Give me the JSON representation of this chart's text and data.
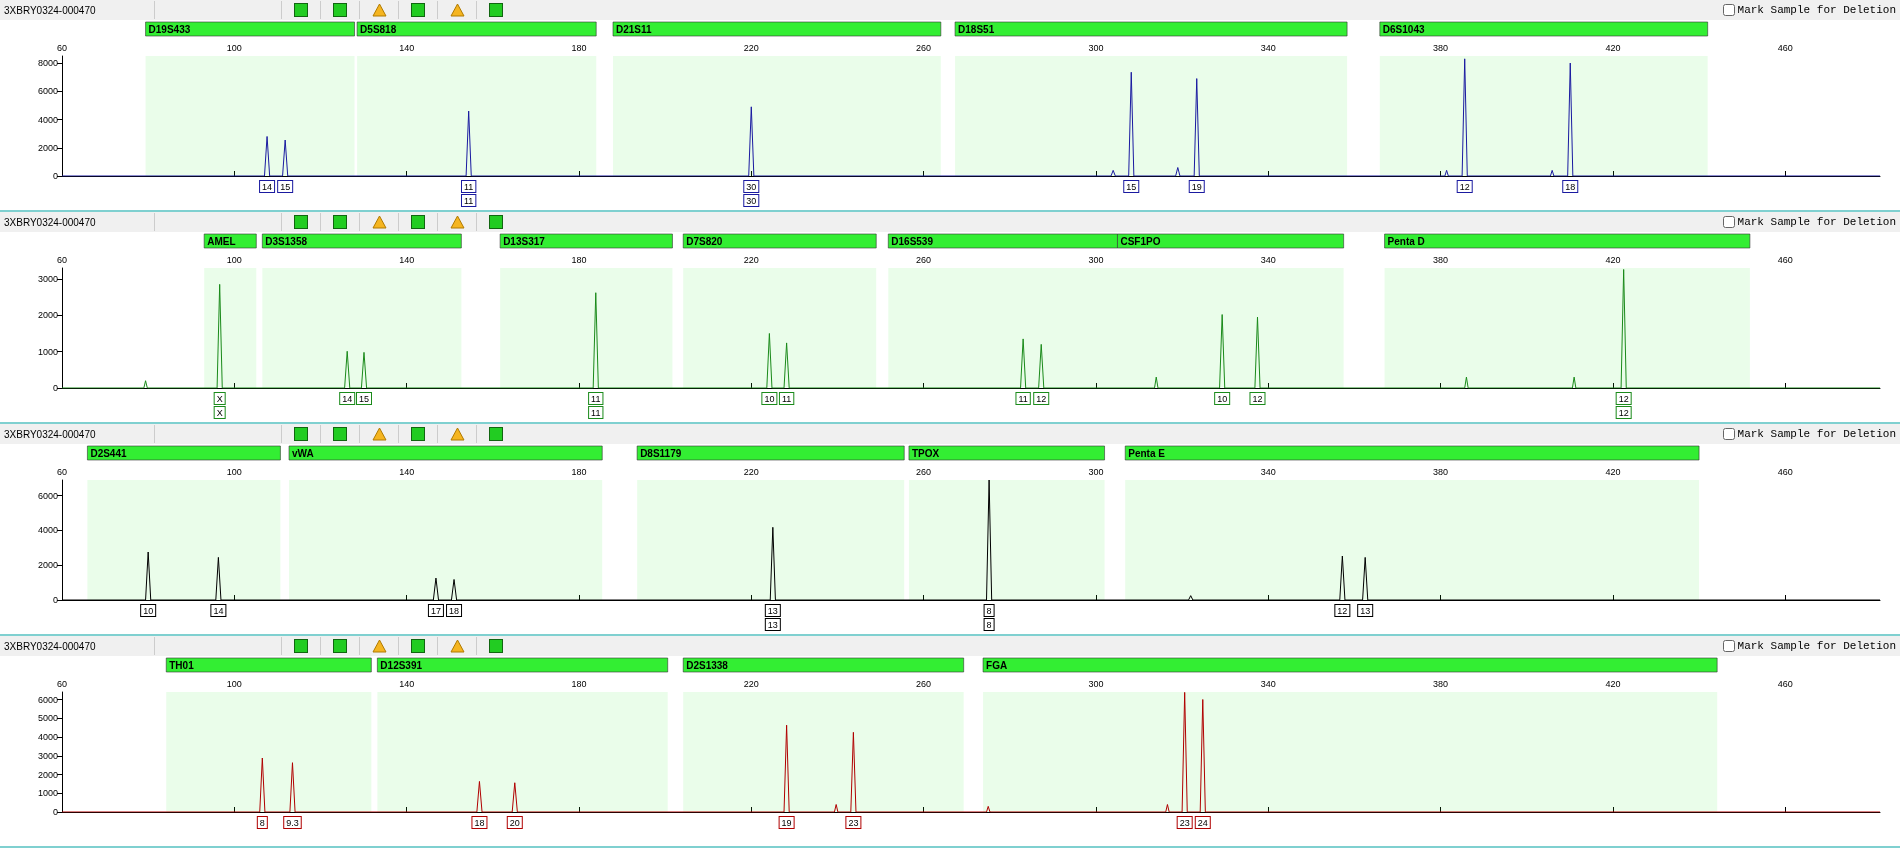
{
  "chart_data": [
    {
      "type": "line",
      "title": "3XBRY0324-000470",
      "marker": "none",
      "line_style": "solid",
      "xlim": [
        60,
        482
      ],
      "xticks": [
        60,
        100,
        140,
        180,
        220,
        260,
        300,
        340,
        380,
        420,
        460
      ],
      "ylim": [
        0,
        8500
      ],
      "yticks": [
        0,
        2000,
        4000,
        6000,
        8000
      ],
      "series": [
        {
          "color": "#1a1aa0",
          "x": [
            60,
            107,
            107.6,
            108.2,
            111.2,
            111.8,
            112.4,
            153.8,
            154.4,
            155,
            219.4,
            220,
            220.6,
            303.5,
            304,
            304.5,
            307.6,
            308.2,
            308.8,
            318.5,
            319,
            319.5,
            322.8,
            323.4,
            324,
            381,
            381.4,
            381.8,
            385,
            385.6,
            386.2,
            405.5,
            405.9,
            406.3,
            409.5,
            410.1,
            410.7,
            482
          ],
          "values": [
            0,
            0,
            2800,
            0,
            0,
            2550,
            0,
            0,
            4600,
            0,
            0,
            4900,
            0,
            0,
            400,
            0,
            0,
            7350,
            0,
            0,
            600,
            0,
            0,
            6900,
            0,
            0,
            400,
            0,
            0,
            8300,
            0,
            0,
            400,
            0,
            0,
            8000,
            0,
            0
          ]
        }
      ],
      "bands": [
        {
          "axis": "x",
          "from": 79.4,
          "to": 127.9,
          "label": "D19S433",
          "color": "#33ee33"
        },
        {
          "axis": "x",
          "from": 128.5,
          "to": 184,
          "label": "D5S818",
          "color": "#33ee33"
        },
        {
          "axis": "x",
          "from": 187.9,
          "to": 264,
          "label": "D21S11",
          "color": "#33ee33"
        },
        {
          "axis": "x",
          "from": 267.3,
          "to": 358.3,
          "label": "D18S51",
          "color": "#33ee33"
        },
        {
          "axis": "x",
          "from": 365.9,
          "to": 442,
          "label": "D6S1043",
          "color": "#33ee33"
        }
      ],
      "annotations": [
        "Mark Sample for Deletion",
        {
          "text": "14",
          "x": 107.6,
          "y": 0
        },
        {
          "text": "15",
          "x": 111.8,
          "y": 0
        },
        {
          "text": "11",
          "x": 154.4,
          "y": 0
        },
        {
          "text": "11",
          "x": 154.4,
          "y": 0
        },
        {
          "text": "30",
          "x": 220,
          "y": 0
        },
        {
          "text": "30",
          "x": 220,
          "y": 0
        },
        {
          "text": "15",
          "x": 308.2,
          "y": 0
        },
        {
          "text": "19",
          "x": 323.4,
          "y": 0
        },
        {
          "text": "12",
          "x": 385.6,
          "y": 0
        },
        {
          "text": "18",
          "x": 410.1,
          "y": 0
        }
      ]
    },
    {
      "type": "line",
      "title": "3XBRY0324-000470",
      "marker": "none",
      "line_style": "solid",
      "xlim": [
        60,
        482
      ],
      "xticks": [
        60,
        100,
        140,
        180,
        220,
        260,
        300,
        340,
        380,
        420,
        460
      ],
      "ylim": [
        0,
        3300
      ],
      "yticks": [
        0,
        1000,
        2000,
        3000
      ],
      "series": [
        {
          "color": "#1a8a1a",
          "x": [
            60,
            79,
            79.4,
            79.8,
            96,
            96.6,
            97.2,
            125.6,
            126.2,
            126.8,
            129.5,
            130.1,
            130.7,
            183.3,
            183.9,
            184.5,
            223.6,
            224.2,
            224.8,
            227.6,
            228.2,
            228.8,
            282.5,
            283.1,
            283.7,
            286.7,
            287.3,
            287.9,
            313.6,
            314,
            314.4,
            328.7,
            329.3,
            329.9,
            336.9,
            337.5,
            338.1,
            385.6,
            386,
            386.4,
            410.6,
            411,
            411.4,
            421.9,
            422.5,
            423.1,
            482
          ],
          "values": [
            0,
            0,
            200,
            0,
            0,
            2850,
            0,
            0,
            1010,
            0,
            0,
            980,
            0,
            0,
            2620,
            0,
            0,
            1500,
            0,
            0,
            1240,
            0,
            0,
            1350,
            0,
            0,
            1200,
            0,
            0,
            300,
            0,
            0,
            2020,
            0,
            0,
            1950,
            0,
            0,
            300,
            0,
            0,
            300,
            0,
            0,
            3260,
            0,
            0
          ]
        }
      ],
      "bands": [
        {
          "axis": "x",
          "from": 93,
          "to": 105.1,
          "label": "AMEL",
          "color": "#33ee33"
        },
        {
          "axis": "x",
          "from": 106.5,
          "to": 152.7,
          "label": "D3S1358",
          "color": "#33ee33"
        },
        {
          "axis": "x",
          "from": 161.7,
          "to": 201.7,
          "label": "D13S317",
          "color": "#33ee33"
        },
        {
          "axis": "x",
          "from": 204.2,
          "to": 249,
          "label": "D7S820",
          "color": "#33ee33"
        },
        {
          "axis": "x",
          "from": 251.8,
          "to": 305,
          "label": "D16S539",
          "color": "#33ee33"
        },
        {
          "axis": "x",
          "from": 305,
          "to": 357.5,
          "label": "CSF1PO",
          "color": "#33ee33"
        },
        {
          "axis": "x",
          "from": 367,
          "to": 451.8,
          "label": "Penta D",
          "color": "#33ee33"
        }
      ],
      "annotations": [
        "Mark Sample for Deletion",
        {
          "text": "X",
          "x": 96.6,
          "y": 0
        },
        {
          "text": "X",
          "x": 96.6,
          "y": 0
        },
        {
          "text": "14",
          "x": 126.2,
          "y": 0
        },
        {
          "text": "15",
          "x": 130.1,
          "y": 0
        },
        {
          "text": "11",
          "x": 183.9,
          "y": 0
        },
        {
          "text": "11",
          "x": 183.9,
          "y": 0
        },
        {
          "text": "10",
          "x": 224.2,
          "y": 0
        },
        {
          "text": "11",
          "x": 228.2,
          "y": 0
        },
        {
          "text": "11",
          "x": 283.1,
          "y": 0
        },
        {
          "text": "12",
          "x": 287.3,
          "y": 0
        },
        {
          "text": "10",
          "x": 329.3,
          "y": 0
        },
        {
          "text": "12",
          "x": 337.5,
          "y": 0
        },
        {
          "text": "12",
          "x": 422.5,
          "y": 0
        },
        {
          "text": "12",
          "x": 422.5,
          "y": 0
        }
      ]
    },
    {
      "type": "line",
      "title": "3XBRY0324-000470",
      "marker": "none",
      "line_style": "solid",
      "xlim": [
        60,
        482
      ],
      "xticks": [
        60,
        100,
        140,
        180,
        220,
        260,
        300,
        340,
        380,
        420,
        460
      ],
      "ylim": [
        0,
        6900
      ],
      "yticks": [
        0,
        2000,
        4000,
        6000
      ],
      "series": [
        {
          "color": "#000000",
          "x": [
            60,
            79.4,
            80,
            80.6,
            95.7,
            96.3,
            96.9,
            146.2,
            146.8,
            147.4,
            150.4,
            151,
            151.6,
            224.4,
            225,
            225.6,
            274.6,
            275.2,
            275.8,
            321.5,
            322,
            322.5,
            356.6,
            357.2,
            357.8,
            361.9,
            362.5,
            363.1,
            482
          ],
          "values": [
            0,
            0,
            2760,
            0,
            0,
            2450,
            0,
            0,
            1260,
            0,
            0,
            1180,
            0,
            0,
            4180,
            0,
            0,
            6900,
            0,
            0,
            250,
            0,
            0,
            2530,
            0,
            0,
            2450,
            0,
            0
          ]
        }
      ],
      "bands": [
        {
          "axis": "x",
          "from": 65.9,
          "to": 110.7,
          "label": "D2S441",
          "color": "#33ee33"
        },
        {
          "axis": "x",
          "from": 112.7,
          "to": 185.4,
          "label": "vWA",
          "color": "#33ee33"
        },
        {
          "axis": "x",
          "from": 193.5,
          "to": 255.5,
          "label": "D8S1179",
          "color": "#33ee33"
        },
        {
          "axis": "x",
          "from": 256.6,
          "to": 302,
          "label": "TPOX",
          "color": "#33ee33"
        },
        {
          "axis": "x",
          "from": 306.8,
          "to": 440,
          "label": "Penta E",
          "color": "#33ee33"
        }
      ],
      "annotations": [
        "Mark Sample for Deletion",
        {
          "text": "10",
          "x": 80,
          "y": 0
        },
        {
          "text": "14",
          "x": 96.3,
          "y": 0
        },
        {
          "text": "17",
          "x": 146.8,
          "y": 0
        },
        {
          "text": "18",
          "x": 151,
          "y": 0
        },
        {
          "text": "13",
          "x": 225,
          "y": 0
        },
        {
          "text": "13",
          "x": 225,
          "y": 0
        },
        {
          "text": "8",
          "x": 275.2,
          "y": 0
        },
        {
          "text": "8",
          "x": 275.2,
          "y": 0
        },
        {
          "text": "12",
          "x": 357.2,
          "y": 0
        },
        {
          "text": "13",
          "x": 362.5,
          "y": 0
        }
      ]
    },
    {
      "type": "line",
      "title": "3XBRY0324-000470",
      "marker": "none",
      "line_style": "solid",
      "xlim": [
        60,
        482
      ],
      "xticks": [
        60,
        100,
        140,
        180,
        220,
        260,
        300,
        340,
        380,
        420,
        460
      ],
      "ylim": [
        0,
        6400
      ],
      "yticks": [
        0,
        1000,
        2000,
        3000,
        4000,
        5000,
        6000
      ],
      "series": [
        {
          "color": "#b00000",
          "x": [
            60,
            105.9,
            106.5,
            107.1,
            112.9,
            113.5,
            114.1,
            156.3,
            156.9,
            157.5,
            164.5,
            165.1,
            165.7,
            227.6,
            228.2,
            228.8,
            239.3,
            239.7,
            240.1,
            243.1,
            243.7,
            244.3,
            274.6,
            275,
            275.4,
            316.2,
            316.6,
            317,
            320,
            320.6,
            321.2,
            324.2,
            324.8,
            325.4,
            482
          ],
          "values": [
            0,
            0,
            2880,
            0,
            0,
            2630,
            0,
            0,
            1630,
            0,
            0,
            1560,
            0,
            0,
            4630,
            0,
            0,
            400,
            0,
            0,
            4250,
            0,
            0,
            300,
            0,
            0,
            400,
            0,
            0,
            6380,
            0,
            0,
            6000,
            0,
            0
          ]
        }
      ],
      "bands": [
        {
          "axis": "x",
          "from": 84.2,
          "to": 131.8,
          "label": "TH01",
          "color": "#33ee33"
        },
        {
          "axis": "x",
          "from": 133.2,
          "to": 200.6,
          "label": "D12S391",
          "color": "#33ee33"
        },
        {
          "axis": "x",
          "from": 204.2,
          "to": 269.3,
          "label": "D2S1338",
          "color": "#33ee33"
        },
        {
          "axis": "x",
          "from": 273.8,
          "to": 444.2,
          "label": "FGA",
          "color": "#33ee33"
        }
      ],
      "annotations": [
        "Mark Sample for Deletion",
        {
          "text": "8",
          "x": 106.5,
          "y": 0
        },
        {
          "text": "9.3",
          "x": 113.5,
          "y": 0
        },
        {
          "text": "18",
          "x": 156.9,
          "y": 0
        },
        {
          "text": "20",
          "x": 165.1,
          "y": 0
        },
        {
          "text": "19",
          "x": 228.2,
          "y": 0
        },
        {
          "text": "23",
          "x": 243.7,
          "y": 0
        },
        {
          "text": "23",
          "x": 320.6,
          "y": 0
        },
        {
          "text": "24",
          "x": 324.8,
          "y": 0
        }
      ]
    }
  ]
}
